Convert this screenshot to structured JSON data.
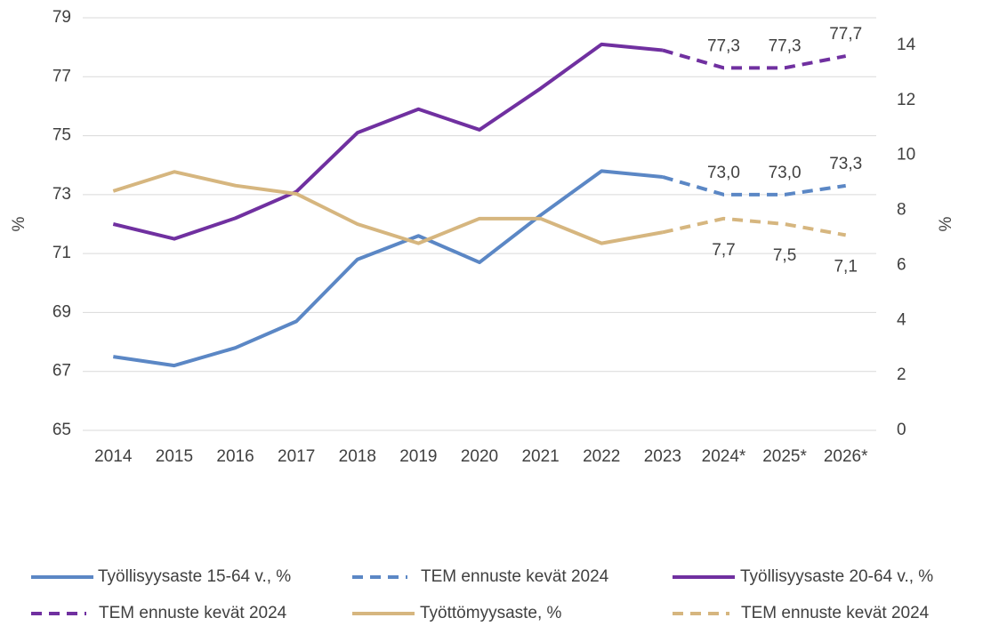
{
  "chart_data": {
    "type": "line",
    "categories": [
      "2014",
      "2015",
      "2016",
      "2017",
      "2018",
      "2019",
      "2020",
      "2021",
      "2022",
      "2023",
      "2024*",
      "2025*",
      "2026*"
    ],
    "y_label": "%",
    "y2_label": "%",
    "ylim": [
      65,
      79
    ],
    "yticks": [
      65,
      67,
      69,
      71,
      73,
      75,
      77,
      79
    ],
    "y2lim": [
      0,
      15
    ],
    "y2ticks": [
      0,
      2,
      4,
      6,
      8,
      10,
      12,
      14
    ],
    "grid": true,
    "series": [
      {
        "name": "Työllisyysaste 15-64 v., %",
        "color": "#5b87c5",
        "dashed": false,
        "values": [
          67.5,
          67.2,
          67.8,
          68.7,
          70.8,
          71.6,
          70.7,
          72.3,
          73.8,
          73.6,
          null,
          null,
          null
        ]
      },
      {
        "name": "TEM ennuste kevät 2024",
        "color": "#5b87c5",
        "dashed": true,
        "label_position": "above",
        "values": [
          null,
          null,
          null,
          null,
          null,
          null,
          null,
          null,
          null,
          73.6,
          73.0,
          73.0,
          73.3
        ],
        "value_labels": [
          null,
          null,
          null,
          null,
          null,
          null,
          null,
          null,
          null,
          null,
          "73,0",
          "73,0",
          "73,3"
        ]
      },
      {
        "name": "Työllisyysaste 20-64 v., %",
        "color": "#7030a0",
        "dashed": false,
        "values": [
          72.0,
          71.5,
          72.2,
          73.1,
          75.1,
          75.9,
          75.2,
          76.6,
          78.1,
          77.9,
          null,
          null,
          null
        ]
      },
      {
        "name": "TEM ennuste kevät 2024",
        "color": "#7030a0",
        "dashed": true,
        "label_position": "above",
        "values": [
          null,
          null,
          null,
          null,
          null,
          null,
          null,
          null,
          null,
          77.9,
          77.3,
          77.3,
          77.7
        ],
        "value_labels": [
          null,
          null,
          null,
          null,
          null,
          null,
          null,
          null,
          null,
          null,
          "77,3",
          "77,3",
          "77,7"
        ]
      },
      {
        "name": "Työttömyysaste, %",
        "color": "#d6b67f",
        "dashed": false,
        "axis": "y2",
        "values": [
          8.7,
          9.4,
          8.9,
          8.6,
          7.5,
          6.8,
          7.7,
          7.7,
          6.8,
          7.2,
          null,
          null,
          null
        ]
      },
      {
        "name": "TEM ennuste kevät 2024",
        "color": "#d6b67f",
        "dashed": true,
        "axis": "y2",
        "label_position": "below",
        "values": [
          null,
          null,
          null,
          null,
          null,
          null,
          null,
          null,
          null,
          7.2,
          7.7,
          7.5,
          7.1
        ],
        "value_labels": [
          null,
          null,
          null,
          null,
          null,
          null,
          null,
          null,
          null,
          null,
          "7,7",
          "7,5",
          "7,1"
        ]
      }
    ]
  }
}
